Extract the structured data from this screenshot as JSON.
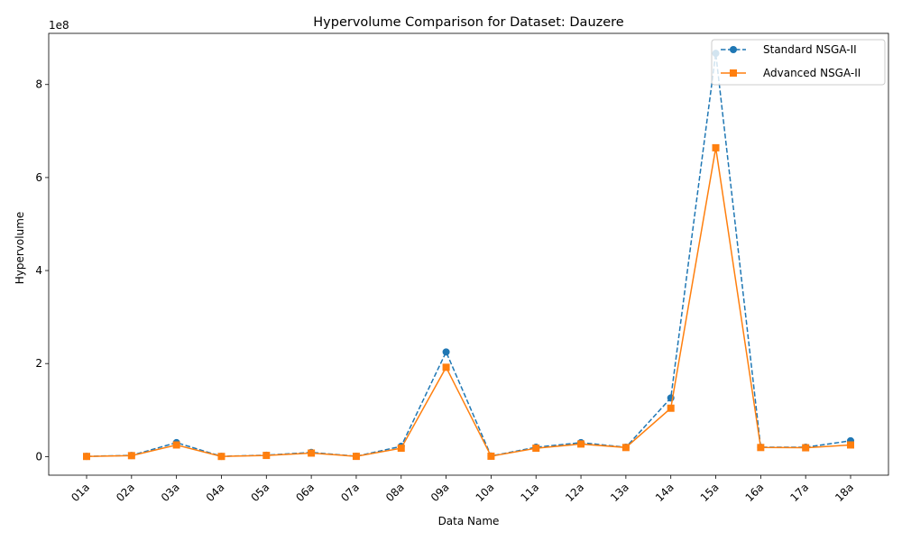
{
  "chart_data": {
    "type": "line",
    "title": "Hypervolume Comparison for Dataset: Dauzere",
    "xlabel": "Data Name",
    "ylabel": "Hypervolume",
    "y_scale_label": "1e8",
    "categories": [
      "01a",
      "02a",
      "03a",
      "04a",
      "05a",
      "06a",
      "07a",
      "08a",
      "09a",
      "10a",
      "11a",
      "12a",
      "13a",
      "14a",
      "15a",
      "16a",
      "17a",
      "18a"
    ],
    "ylim": [
      -40000000,
      910000000
    ],
    "yticks": [
      0,
      200000000,
      400000000,
      600000000,
      800000000
    ],
    "ytick_labels": [
      "0",
      "2",
      "4",
      "6",
      "8"
    ],
    "grid": false,
    "legend_position": "top-right",
    "series": [
      {
        "name": "Standard NSGA-II",
        "color": "#1f77b4",
        "line_style": "dashed",
        "marker": "circle",
        "values": [
          500000,
          2500000,
          30000000,
          500000,
          3000000,
          9000000,
          700000,
          22000000,
          225000000,
          1200000,
          20000000,
          30000000,
          20000000,
          126000000,
          867000000,
          20000000,
          20000000,
          34000000
        ]
      },
      {
        "name": "Advanced NSGA-II",
        "color": "#ff7f0e",
        "line_style": "solid",
        "marker": "square",
        "values": [
          300000,
          2000000,
          25000000,
          300000,
          2500000,
          7500000,
          500000,
          18000000,
          192000000,
          800000,
          18000000,
          27000000,
          19500000,
          104000000,
          664000000,
          19500000,
          19000000,
          25000000
        ]
      }
    ]
  }
}
